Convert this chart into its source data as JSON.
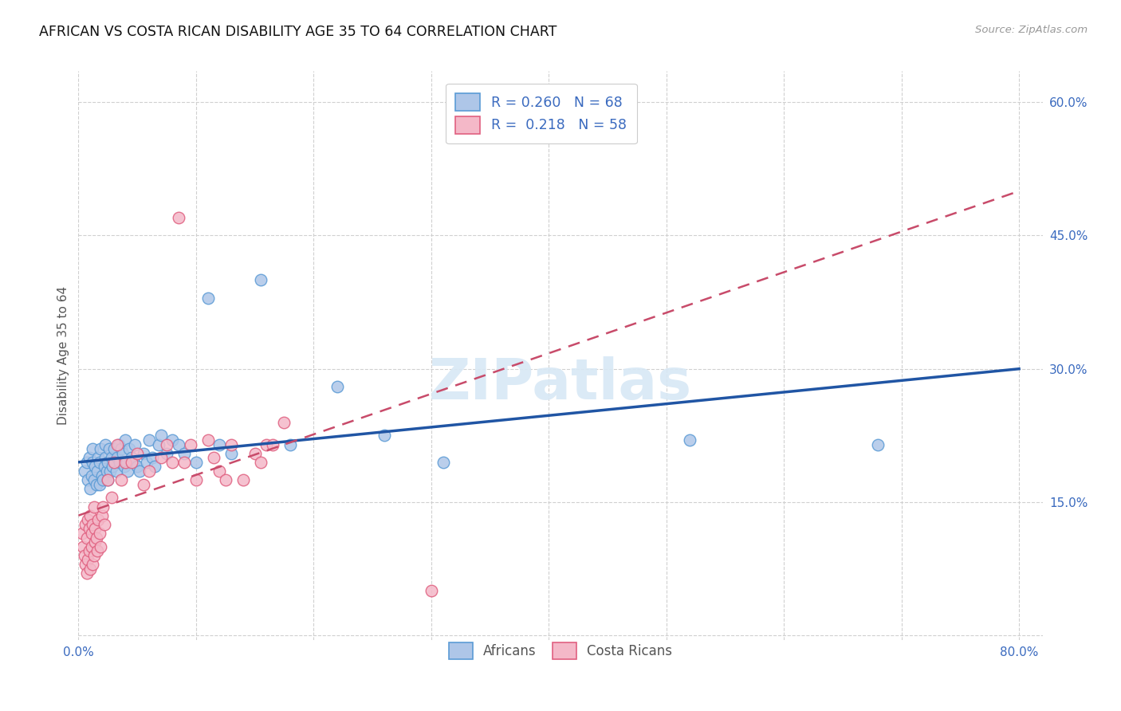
{
  "title": "AFRICAN VS COSTA RICAN DISABILITY AGE 35 TO 64 CORRELATION CHART",
  "source": "Source: ZipAtlas.com",
  "ylabel": "Disability Age 35 to 64",
  "xlim": [
    0.0,
    0.82
  ],
  "ylim": [
    -0.005,
    0.635
  ],
  "xticks": [
    0.0,
    0.1,
    0.2,
    0.3,
    0.4,
    0.5,
    0.6,
    0.7,
    0.8
  ],
  "xticklabels": [
    "0.0%",
    "",
    "",
    "",
    "",
    "",
    "",
    "",
    "80.0%"
  ],
  "yticks": [
    0.0,
    0.15,
    0.3,
    0.45,
    0.6
  ],
  "yticklabels": [
    "",
    "15.0%",
    "30.0%",
    "45.0%",
    "60.0%"
  ],
  "african_color": "#aec6e8",
  "african_edge": "#5b9bd5",
  "costa_color": "#f4b8c8",
  "costa_edge": "#e06080",
  "trend_african_color": "#2055a4",
  "trend_costa_color": "#c84b6a",
  "background_color": "#ffffff",
  "grid_color": "#d0d0d0",
  "africans_x": [
    0.005,
    0.007,
    0.008,
    0.009,
    0.01,
    0.011,
    0.012,
    0.012,
    0.013,
    0.014,
    0.015,
    0.016,
    0.017,
    0.018,
    0.018,
    0.019,
    0.02,
    0.021,
    0.022,
    0.023,
    0.023,
    0.024,
    0.025,
    0.025,
    0.026,
    0.027,
    0.028,
    0.029,
    0.03,
    0.031,
    0.032,
    0.033,
    0.034,
    0.035,
    0.036,
    0.038,
    0.039,
    0.04,
    0.041,
    0.042,
    0.043,
    0.045,
    0.047,
    0.048,
    0.05,
    0.052,
    0.055,
    0.058,
    0.06,
    0.063,
    0.065,
    0.068,
    0.07,
    0.075,
    0.08,
    0.085,
    0.09,
    0.1,
    0.11,
    0.12,
    0.13,
    0.155,
    0.18,
    0.22,
    0.26,
    0.31,
    0.52,
    0.68
  ],
  "africans_y": [
    0.185,
    0.195,
    0.175,
    0.2,
    0.165,
    0.18,
    0.195,
    0.21,
    0.175,
    0.19,
    0.17,
    0.185,
    0.2,
    0.17,
    0.195,
    0.21,
    0.18,
    0.175,
    0.19,
    0.2,
    0.215,
    0.185,
    0.175,
    0.195,
    0.21,
    0.185,
    0.2,
    0.19,
    0.21,
    0.195,
    0.185,
    0.2,
    0.215,
    0.195,
    0.21,
    0.205,
    0.19,
    0.22,
    0.195,
    0.185,
    0.21,
    0.2,
    0.195,
    0.215,
    0.19,
    0.185,
    0.205,
    0.195,
    0.22,
    0.2,
    0.19,
    0.215,
    0.225,
    0.205,
    0.22,
    0.215,
    0.205,
    0.195,
    0.38,
    0.215,
    0.205,
    0.4,
    0.215,
    0.28,
    0.225,
    0.195,
    0.22,
    0.215
  ],
  "costa_x": [
    0.003,
    0.004,
    0.005,
    0.006,
    0.006,
    0.007,
    0.007,
    0.008,
    0.008,
    0.009,
    0.009,
    0.01,
    0.01,
    0.011,
    0.011,
    0.012,
    0.012,
    0.013,
    0.013,
    0.014,
    0.014,
    0.015,
    0.016,
    0.017,
    0.018,
    0.019,
    0.02,
    0.021,
    0.022,
    0.025,
    0.028,
    0.03,
    0.033,
    0.036,
    0.04,
    0.045,
    0.05,
    0.055,
    0.06,
    0.07,
    0.075,
    0.08,
    0.085,
    0.09,
    0.095,
    0.1,
    0.11,
    0.115,
    0.12,
    0.125,
    0.13,
    0.14,
    0.15,
    0.155,
    0.16,
    0.165,
    0.175,
    0.3
  ],
  "costa_y": [
    0.115,
    0.1,
    0.09,
    0.08,
    0.125,
    0.07,
    0.11,
    0.085,
    0.13,
    0.095,
    0.12,
    0.075,
    0.135,
    0.1,
    0.115,
    0.08,
    0.125,
    0.09,
    0.145,
    0.105,
    0.12,
    0.11,
    0.095,
    0.13,
    0.115,
    0.1,
    0.135,
    0.145,
    0.125,
    0.175,
    0.155,
    0.195,
    0.215,
    0.175,
    0.195,
    0.195,
    0.205,
    0.17,
    0.185,
    0.2,
    0.215,
    0.195,
    0.47,
    0.195,
    0.215,
    0.175,
    0.22,
    0.2,
    0.185,
    0.175,
    0.215,
    0.175,
    0.205,
    0.195,
    0.215,
    0.215,
    0.24,
    0.05
  ]
}
